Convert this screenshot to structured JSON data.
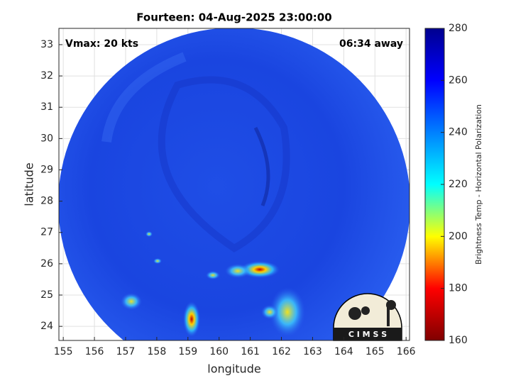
{
  "chart_data": {
    "type": "heatmap",
    "title": "Fourteen: 04-Aug-2025 23:00:00",
    "annotations": [
      "Vmax: 20 kts",
      "06:34 away"
    ],
    "xlabel": "longitude",
    "ylabel": "latitude",
    "xlim": [
      154.86,
      166.11
    ],
    "ylim": [
      23.55,
      33.52
    ],
    "xticks": [
      155,
      156,
      157,
      158,
      159,
      160,
      161,
      162,
      163,
      164,
      165,
      166
    ],
    "yticks": [
      24,
      25,
      26,
      27,
      28,
      29,
      30,
      31,
      32,
      33
    ],
    "grid": true,
    "colorbar": {
      "label": "Brightness Temp - Horizontal Polarization",
      "lim": [
        160,
        280
      ],
      "ticks": [
        160,
        180,
        200,
        220,
        240,
        260,
        280
      ],
      "colormap": "jet_r"
    },
    "logo": "C I M S S"
  }
}
